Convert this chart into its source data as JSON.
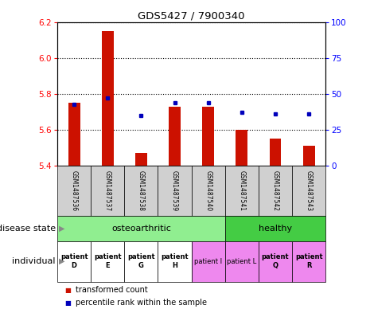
{
  "title": "GDS5427 / 7900340",
  "samples": [
    "GSM1487536",
    "GSM1487537",
    "GSM1487538",
    "GSM1487539",
    "GSM1487540",
    "GSM1487541",
    "GSM1487542",
    "GSM1487543"
  ],
  "red_values": [
    5.75,
    6.15,
    5.47,
    5.73,
    5.73,
    5.6,
    5.55,
    5.51
  ],
  "blue_values_pct": [
    43,
    47,
    35,
    44,
    44,
    37,
    36,
    36
  ],
  "ylim_left": [
    5.4,
    6.2
  ],
  "ylim_right": [
    0,
    100
  ],
  "left_ticks": [
    5.4,
    5.6,
    5.8,
    6.0,
    6.2
  ],
  "right_ticks": [
    0,
    25,
    50,
    75,
    100
  ],
  "disease_state_groups": [
    {
      "label": "osteoarthritic",
      "start": 0,
      "end": 5,
      "color": "#90EE90"
    },
    {
      "label": "healthy",
      "start": 5,
      "end": 8,
      "color": "#44CC44"
    }
  ],
  "individual_labels": [
    "patient\nD",
    "patient\nE",
    "patient\nG",
    "patient\nH",
    "patient I",
    "patient L",
    "patient\nQ",
    "patient\nR"
  ],
  "individual_bold": [
    true,
    true,
    true,
    true,
    false,
    false,
    true,
    true
  ],
  "individual_colors": [
    "#FFFFFF",
    "#FFFFFF",
    "#FFFFFF",
    "#FFFFFF",
    "#EE88EE",
    "#EE88EE",
    "#EE88EE",
    "#EE88EE"
  ],
  "disease_state_label": "disease state",
  "individual_label": "individual",
  "legend_red": "transformed count",
  "legend_blue": "percentile rank within the sample",
  "bar_color": "#CC1100",
  "dot_color": "#0000BB",
  "base_value": 5.4,
  "sample_bg": "#D0D0D0",
  "fig_width": 4.65,
  "fig_height": 3.93,
  "dpi": 100
}
